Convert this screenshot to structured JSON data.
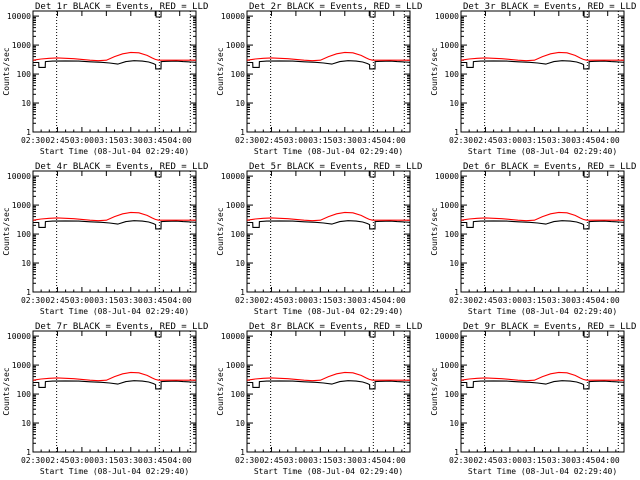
{
  "chart_data": [
    {
      "type": "line",
      "title": "Det 1r BLACK = Events, RED = LLD"
    },
    {
      "type": "line",
      "title": "Det 2r BLACK = Events, RED = LLD"
    },
    {
      "type": "line",
      "title": "Det 3r BLACK = Events, RED = LLD"
    },
    {
      "type": "line",
      "title": "Det 4r BLACK = Events, RED = LLD"
    },
    {
      "type": "line",
      "title": "Det 5r BLACK = Events, RED = LLD"
    },
    {
      "type": "line",
      "title": "Det 6r BLACK = Events, RED = LLD"
    },
    {
      "type": "line",
      "title": "Det 7r BLACK = Events, RED = LLD"
    },
    {
      "type": "line",
      "title": "Det 8r BLACK = Events, RED = LLD"
    },
    {
      "type": "line",
      "title": "Det 9r BLACK = Events, RED = LLD"
    }
  ],
  "shared": {
    "xlabel": "Start Time (08-Jul-04 02:29:40)",
    "ylabel": "Counts/sec",
    "x_ticks": [
      "02:30",
      "02:45",
      "03:00",
      "03:15",
      "03:30",
      "03:45",
      "04:00"
    ],
    "x_tick_minutes": [
      0,
      15,
      30,
      45,
      60,
      75,
      90
    ],
    "xlim_minutes": [
      0,
      100
    ],
    "y_ticks": [
      "1",
      "10",
      "100",
      "1000",
      "10000"
    ],
    "y_tick_values": [
      1,
      10,
      100,
      1000,
      10000
    ],
    "ylim": [
      1,
      15000
    ],
    "y_scale": "log",
    "dotted_lines_minutes": [
      14.5,
      77.5,
      96.5
    ],
    "series": [
      {
        "color": "#000000",
        "x": [
          0,
          3.5,
          3.6,
          7.5,
          7.6,
          12,
          20,
          28,
          35,
          42,
          47,
          52,
          57,
          62,
          67,
          71,
          74,
          75.2,
          75.3,
          78.5,
          78.6,
          82,
          88,
          92,
          95,
          97,
          100
        ],
        "y": [
          250,
          250,
          170,
          170,
          270,
          280,
          285,
          280,
          265,
          255,
          240,
          220,
          270,
          290,
          280,
          260,
          230,
          210,
          150,
          150,
          270,
          275,
          280,
          270,
          265,
          260,
          255
        ]
      },
      {
        "color": "#ff0000",
        "x": [
          0,
          5,
          10,
          15,
          20,
          25,
          30,
          35,
          40,
          45,
          50,
          55,
          60,
          65,
          70,
          73,
          75,
          77,
          80,
          85,
          90,
          95,
          100
        ],
        "y": [
          300,
          330,
          350,
          360,
          350,
          340,
          320,
          300,
          290,
          300,
          400,
          500,
          560,
          540,
          440,
          360,
          320,
          300,
          300,
          300,
          300,
          300,
          300
        ]
      }
    ]
  }
}
